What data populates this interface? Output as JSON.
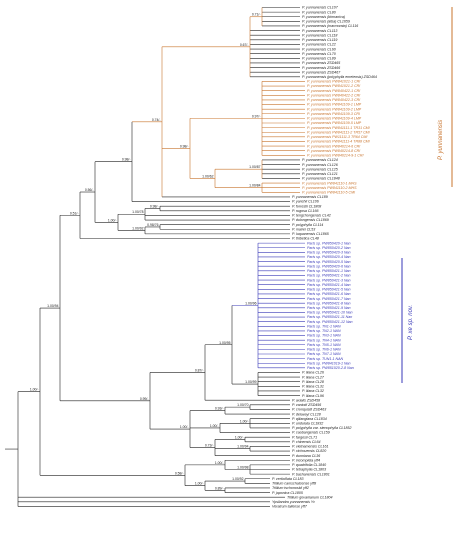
{
  "colors": {
    "black": "#222222",
    "orange": "#c8742e",
    "blue": "#3a3ab8"
  },
  "tips": [
    {
      "t": "P. yunnanensis CL107",
      "c": "k"
    },
    {
      "t": "P. yunnanensis CL80",
      "c": "k"
    },
    {
      "t": "P. yunnanensis (birmanica)",
      "c": "k"
    },
    {
      "t": "P. yunnanensis (alba) CL1659",
      "c": "k"
    },
    {
      "t": "P. yunnanensis (marmorata) CL116",
      "c": "k"
    },
    {
      "t": "P. yunnanensis CL113",
      "c": "k"
    },
    {
      "t": "P. yunnanensis CL118",
      "c": "k"
    },
    {
      "t": "P. yunnanensis CL119",
      "c": "k"
    },
    {
      "t": "P. yunnanensis CL22",
      "c": "k"
    },
    {
      "t": "P. yunnanensis CL60",
      "c": "k"
    },
    {
      "t": "P. yunnanensis CL70",
      "c": "k"
    },
    {
      "t": "P. yunnanensis CL89",
      "c": "k"
    },
    {
      "t": "P. yunnanensis ZSD465",
      "c": "k"
    },
    {
      "t": "P. yunnanensis ZSD466",
      "c": "k"
    },
    {
      "t": "P. yunnanensis ZSD467",
      "c": "k"
    },
    {
      "t": "P. yunnanensis (polyphylla emeiensis) ZSD464",
      "c": "k"
    },
    {
      "t": "P. yunnanensis PW841021-1 CRI",
      "c": "o"
    },
    {
      "t": "P. yunnanensis PW841021-2 CRI",
      "c": "o"
    },
    {
      "t": "P. yunnanensis PW840422-1 CRI",
      "c": "o"
    },
    {
      "t": "P. yunnanensis PW840422-2 CRI",
      "c": "o"
    },
    {
      "t": "P. yunnanensis PW840422-3 CRI",
      "c": "o"
    },
    {
      "t": "P. yunnanensis PW841109-1 LMP",
      "c": "o"
    },
    {
      "t": "P. yunnanensis PW841109-2 LMP",
      "c": "o"
    },
    {
      "t": "P. yunnanensis PW841109-3 CRI",
      "c": "o"
    },
    {
      "t": "P. yunnanensis PW841109-4 LMP",
      "c": "o"
    },
    {
      "t": "P. yunnanensis PW841109-5 LMP",
      "c": "o"
    },
    {
      "t": "P. yunnanensis PW841111-1 TR31 CMI",
      "c": "o"
    },
    {
      "t": "P. yunnanensis PW841111-2 TR57 CMI",
      "c": "o"
    },
    {
      "t": "P. yunnanensis PW11111-3 TR64 CMI",
      "c": "o"
    },
    {
      "t": "P. yunnanensis PW841111-4 TR88 CMI",
      "c": "o"
    },
    {
      "t": "P. yunnanensis PW840214-6 CRI",
      "c": "o"
    },
    {
      "t": "P. yunnanensis PW840214-8 CRI",
      "c": "o"
    },
    {
      "t": "P. yunnanensis PW840214-9-1 CRI",
      "c": "o"
    },
    {
      "t": "P. yunnanensis CL124",
      "c": "k"
    },
    {
      "t": "P. yunnanensis CL126",
      "c": "k"
    },
    {
      "t": "P. yunnanensis CL125",
      "c": "k"
    },
    {
      "t": "P. yunnanensis CL121",
      "c": "k"
    },
    {
      "t": "P. yunnanensis CL1848",
      "c": "k"
    },
    {
      "t": "P. yunnanensis PW841110-1 MHS",
      "c": "o"
    },
    {
      "t": "P. yunnanensis PW841110-2 MHS",
      "c": "o"
    },
    {
      "t": "P. yunnanensis PW841110-5 CMI",
      "c": "o"
    },
    {
      "t": "P. yunnanensis CL189",
      "c": "k"
    },
    {
      "t": "P. yanchii CL106",
      "c": "k"
    },
    {
      "t": "P. forrestii CL1808",
      "c": "k"
    },
    {
      "t": "P. rugosa CL166",
      "c": "k"
    },
    {
      "t": "P. tengchongensis CL42",
      "c": "k"
    },
    {
      "t": "P. dulongensis CL1869",
      "c": "k"
    },
    {
      "t": "P. polyphylla CL114",
      "c": "k"
    },
    {
      "t": "P. mairei CL53",
      "c": "k"
    },
    {
      "t": "P. luquanensis CL1865",
      "c": "k"
    },
    {
      "t": "P. thibetica CL48",
      "c": "k"
    },
    {
      "t": "Paris sp. PW850420-1 Nan",
      "c": "b"
    },
    {
      "t": "Paris sp. PW850420-2 Nan",
      "c": "b"
    },
    {
      "t": "Paris sp. PW850420-3 Nan",
      "c": "b"
    },
    {
      "t": "Paris sp. PW850420-4 Nan",
      "c": "b"
    },
    {
      "t": "Paris sp. PW850420-5 Nan",
      "c": "b"
    },
    {
      "t": "Paris sp. PW850420-6 Nan",
      "c": "b"
    },
    {
      "t": "Paris sp. PW850421-1 Nan",
      "c": "b"
    },
    {
      "t": "Paris sp. PW850421-2 Nan",
      "c": "b"
    },
    {
      "t": "Paris sp. PW850421-3 Nan",
      "c": "b"
    },
    {
      "t": "Paris sp. PW850421-4 Nan",
      "c": "b"
    },
    {
      "t": "Paris sp. PW850421-5 Nan",
      "c": "b"
    },
    {
      "t": "Paris sp. PW850421-6 Nan",
      "c": "b"
    },
    {
      "t": "Paris sp. PW850421-7 Nan",
      "c": "b"
    },
    {
      "t": "Paris sp. PW850421-8 Nan",
      "c": "b"
    },
    {
      "t": "Paris sp. PW850421-9 Nan",
      "c": "b"
    },
    {
      "t": "Paris sp. PW850421-10 Nan",
      "c": "b"
    },
    {
      "t": "Paris sp. PW850421-11 Nan",
      "c": "b"
    },
    {
      "t": "Paris sp. PW850421-12 Nan",
      "c": "b"
    },
    {
      "t": "Paris sp. TN1-1 NAN",
      "c": "b"
    },
    {
      "t": "Paris sp. TN2-1 NAN",
      "c": "b"
    },
    {
      "t": "Paris sp. TN3-1 NAN",
      "c": "b"
    },
    {
      "t": "Paris sp. TN4-1 NAN",
      "c": "b"
    },
    {
      "t": "Paris sp. TN5-1 NAN",
      "c": "b"
    },
    {
      "t": "Paris sp. TN6-1 NAN",
      "c": "b"
    },
    {
      "t": "Paris sp. TN7-1 NAN",
      "c": "b"
    },
    {
      "t": "Paris sp. TUN1-1 NAN",
      "c": "b"
    },
    {
      "t": "Paris sp. PW841019-1 Nan",
      "c": "b"
    },
    {
      "t": "Paris sp. PW851020-2-8 Nan",
      "c": "b"
    },
    {
      "t": "P. liiana CL26",
      "c": "k"
    },
    {
      "t": "P. liiana CL27",
      "c": "k"
    },
    {
      "t": "P. liiana CL28",
      "c": "k"
    },
    {
      "t": "P. liiana CL31",
      "c": "k"
    },
    {
      "t": "P. liiana CL32",
      "c": "k"
    },
    {
      "t": "P. liiana CL96",
      "c": "k"
    },
    {
      "t": "P. axialis ZSD458",
      "c": "k"
    },
    {
      "t": "P. vaniotii ZSD456",
      "c": "k"
    },
    {
      "t": "P. cronquistii ZSD463",
      "c": "k"
    },
    {
      "t": "P. delavayi CL128",
      "c": "k"
    },
    {
      "t": "P. qiliangiana CL1834",
      "c": "k"
    },
    {
      "t": "P. undulata CL1832",
      "c": "k"
    },
    {
      "t": "P. polyphylla var. stenophylla CL1852",
      "c": "k"
    },
    {
      "t": "P. caobangensis CL159",
      "c": "k"
    },
    {
      "t": "P. fargesii CL71",
      "c": "k"
    },
    {
      "t": "P. chinensis CL64",
      "c": "k"
    },
    {
      "t": "P. vietnamensis CL161",
      "c": "k"
    },
    {
      "t": "P. xichouensis CL820",
      "c": "k"
    },
    {
      "t": "P. dunniana CL36",
      "c": "k"
    },
    {
      "t": "P. incompleta yff4",
      "c": "k"
    },
    {
      "t": "P. quadrifolia CL1840",
      "c": "k"
    },
    {
      "t": "P. tetraphylla CL1803",
      "c": "k"
    },
    {
      "t": "P. bashanensis CL1801",
      "c": "k"
    },
    {
      "t": "P. verticillata CL183",
      "c": "k"
    },
    {
      "t": "Trillium camschatcense yff8",
      "c": "k"
    },
    {
      "t": "Trillium tschonoskii yff2",
      "c": "k"
    },
    {
      "t": "P. japonica CL1805",
      "c": "k"
    },
    {
      "t": "Trillium govanianum CL1804",
      "c": "k"
    },
    {
      "t": "Ypsilandra yunnanensis Yc",
      "c": "k"
    },
    {
      "t": "Veratrum taliense yff7",
      "c": "k"
    }
  ],
  "supports": {
    "n071": "0.71/-",
    "n067": "0.67/-",
    "n097": "0.97/-",
    "n074": "0.74/-",
    "n098": "0.98/-",
    "n100_87": "1.00/87",
    "n100_62": "1.00/62",
    "n100_1": "1.00/-",
    "n100_84": "1.00/84",
    "n098b": "0.98/-",
    "n100_2": "1.00/-",
    "n056": "0.56/-",
    "n098c": "0.98/-",
    "n100_78": "1.00/78",
    "n098_76": "0.98/76",
    "n100_92": "1.00/92",
    "n051": "0.51/-",
    "n100_96": "1.00/96",
    "n100_95": "1.00/95",
    "n087": "0.87/-",
    "n100_99": "1.00/99",
    "n099": "0.99/-",
    "n100_3": "1.00/-",
    "n100_70": "1.00/70",
    "n093": "0.93/-",
    "n100_4": "1.00/-",
    "n100_5": "1.00/-",
    "n100_94": "1.00/94",
    "n100_6": "1.00/-",
    "n073": "0.73/-",
    "n100_98": "1.00/98",
    "n100_7": "1.00/-",
    "n100_8": "1.00/-",
    "n100_92b": "1.00/92",
    "n089": "0.89/-",
    "n100_94r": "1.00/94",
    "n058": "0.58/-",
    "n100_r": "1.00/-"
  },
  "groups": {
    "yunnanensis": "P. yunnanensis",
    "newsp": "P. xe sp. nov."
  }
}
